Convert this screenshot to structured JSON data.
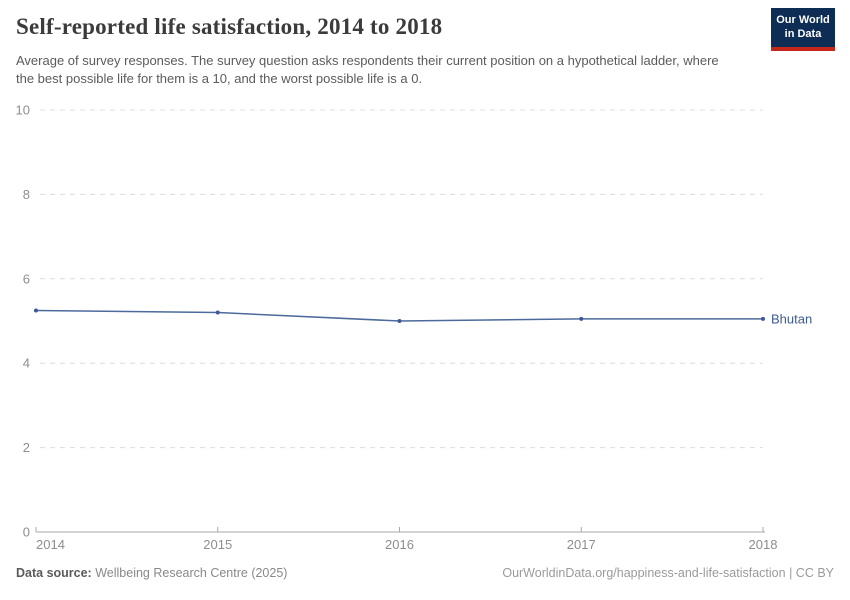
{
  "header": {
    "title": "Self-reported life satisfaction, 2014 to 2018",
    "subtitle": "Average of survey responses. The survey question asks respondents their current position on a hypothetical ladder, where the best possible life for them is a 10, and the worst possible life is a 0.",
    "logo": {
      "line1": "Our World",
      "line2": "in Data"
    }
  },
  "chart_data": {
    "type": "line",
    "title": "Self-reported life satisfaction, 2014 to 2018",
    "x": [
      2014,
      2015,
      2016,
      2017,
      2018
    ],
    "series": [
      {
        "name": "Bhutan",
        "values": [
          5.25,
          5.2,
          5.0,
          5.05,
          5.05
        ]
      }
    ],
    "xlabel": "",
    "ylabel": "",
    "ylim": [
      0,
      10
    ],
    "yticks": [
      0,
      2,
      4,
      6,
      8,
      10
    ],
    "xticks": [
      2014,
      2015,
      2016,
      2017,
      2018
    ],
    "grid": "horizontal-dashed",
    "legend_position": "end-of-line-label"
  },
  "footer": {
    "source_label": "Data source:",
    "source_value": "Wellbeing Research Centre (2025)",
    "credit_link": "OurWorldinData.org/happiness-and-life-satisfaction",
    "credit_suffix": " | CC BY"
  },
  "colors": {
    "line": "#4c6a9c",
    "marker": "#3d5a96",
    "series_label": "#3d5a96",
    "gridline": "#dcdcdc",
    "axis": "#a8a8a8",
    "tick_label": "#8e8e8e",
    "title_text": "#3b3b3b",
    "subtitle_text": "#5b5b5b",
    "logo_bg": "#0d2d54",
    "logo_bar": "#c5271d"
  }
}
